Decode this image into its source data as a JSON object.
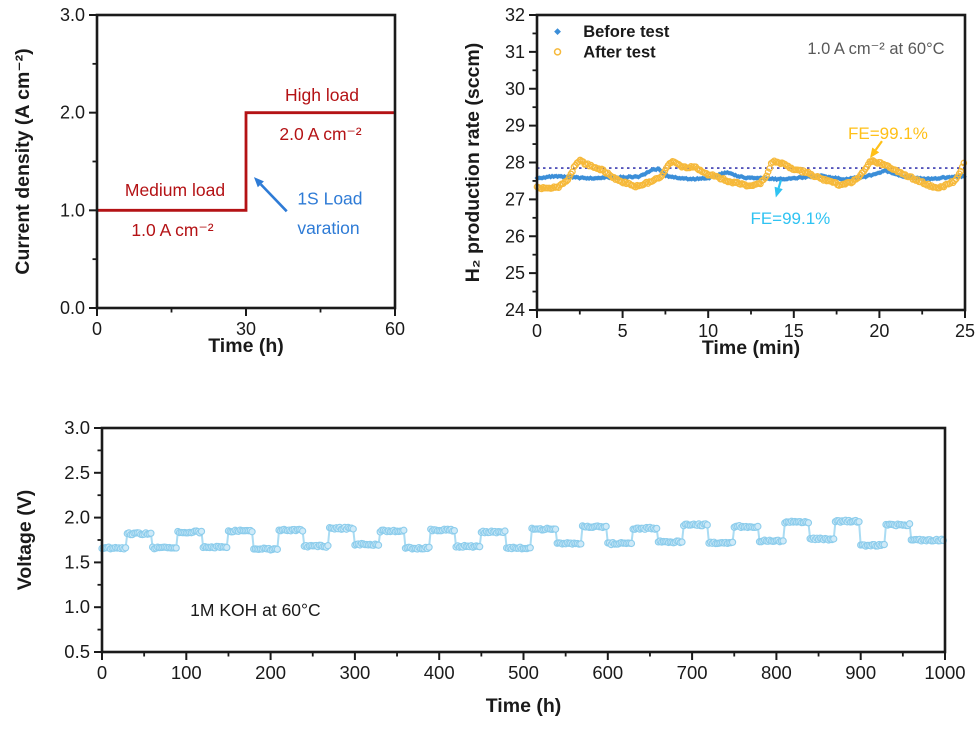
{
  "page": {
    "background": "#ffffff",
    "frame_color": "#1a1a1a"
  },
  "chart_data": [
    {
      "id": "load_profile",
      "type": "line",
      "title": "",
      "xlabel": "Time (h)",
      "ylabel": "Current density (A cm⁻²)",
      "xlim": [
        0,
        60
      ],
      "ylim": [
        0,
        3
      ],
      "xticks": [
        {
          "v": 0,
          "label": "0"
        },
        {
          "v": 30,
          "label": "30"
        },
        {
          "v": 60,
          "label": "60"
        }
      ],
      "xminor": [
        15,
        45
      ],
      "yticks": [
        {
          "v": 0,
          "label": "0.0"
        },
        {
          "v": 1,
          "label": "1.0"
        },
        {
          "v": 2,
          "label": "2.0"
        },
        {
          "v": 3,
          "label": "3.0"
        }
      ],
      "yminor": [
        0.5,
        1.5,
        2.5
      ],
      "grid": false,
      "series": [
        {
          "name": "current-density-step",
          "kind": "line",
          "color": "#b41215",
          "width": 2.8,
          "points": [
            [
              0,
              1
            ],
            [
              30,
              1
            ],
            [
              30,
              2
            ],
            [
              60,
              2
            ]
          ]
        }
      ],
      "annotations": [
        {
          "text": "Medium load",
          "x": 15.7,
          "y": 1.21,
          "color": "#b41215",
          "size": 17.5,
          "weight": "normal"
        },
        {
          "text": "1.0 A cm⁻²",
          "x": 15.2,
          "y": 0.8,
          "color": "#b41215",
          "size": 17.5,
          "weight": "normal"
        },
        {
          "text": "High load",
          "x": 45.3,
          "y": 2.18,
          "color": "#b41215",
          "size": 17.5,
          "weight": "normal"
        },
        {
          "text": "2.0 A cm⁻²",
          "x": 45.0,
          "y": 1.78,
          "color": "#b41215",
          "size": 17.5,
          "weight": "normal"
        },
        {
          "text": "1S Load",
          "x": 46.9,
          "y": 1.12,
          "color": "#2e7bd6",
          "size": 17.5,
          "weight": "normal"
        },
        {
          "text": "varation",
          "x": 46.6,
          "y": 0.82,
          "color": "#2e7bd6",
          "size": 17.5,
          "weight": "normal"
        }
      ],
      "arrows": [
        {
          "from": [
            38.2,
            0.99
          ],
          "to": [
            31.6,
            1.34
          ],
          "color": "#2e7bd6",
          "width": 2.6
        }
      ]
    },
    {
      "id": "h2_rate",
      "type": "scatter",
      "title": "",
      "xlabel": "Time (min)",
      "ylabel": "H₂ production rate (sccm)",
      "xlim": [
        0,
        25
      ],
      "ylim": [
        24,
        32
      ],
      "xticks": [
        {
          "v": 0,
          "label": "0"
        },
        {
          "v": 5,
          "label": "5"
        },
        {
          "v": 10,
          "label": "10"
        },
        {
          "v": 15,
          "label": "15"
        },
        {
          "v": 20,
          "label": "20"
        },
        {
          "v": 25,
          "label": "25"
        }
      ],
      "xminor": [
        2.5,
        7.5,
        12.5,
        17.5,
        22.5
      ],
      "yticks": [
        {
          "v": 24,
          "label": "24"
        },
        {
          "v": 25,
          "label": "25"
        },
        {
          "v": 26,
          "label": "26"
        },
        {
          "v": 27,
          "label": "27"
        },
        {
          "v": 28,
          "label": "28"
        },
        {
          "v": 29,
          "label": "29"
        },
        {
          "v": 30,
          "label": "30"
        },
        {
          "v": 31,
          "label": "31"
        },
        {
          "v": 32,
          "label": "32"
        }
      ],
      "yminor": [
        24.5,
        25.5,
        26.5,
        27.5,
        28.5,
        29.5,
        30.5,
        31.5
      ],
      "grid": false,
      "reflines": [
        {
          "y": 27.85,
          "color": "#3b3bb0",
          "width": 1.6,
          "dash": "2.5 3.5"
        }
      ],
      "series": [
        {
          "name": "Before test",
          "kind": "scatter",
          "marker": "diamond",
          "color": "#3b8ed8",
          "size": 2.5,
          "densify_step": 0.08,
          "jitter": 0.018,
          "seed": 3.1,
          "waypoints": [
            [
              0,
              27.58
            ],
            [
              1,
              27.62
            ],
            [
              2,
              27.6
            ],
            [
              3,
              27.57
            ],
            [
              4,
              27.6
            ],
            [
              5,
              27.6
            ],
            [
              6,
              27.62
            ],
            [
              6.8,
              27.8
            ],
            [
              7.1,
              27.83
            ],
            [
              7.5,
              27.65
            ],
            [
              8,
              27.6
            ],
            [
              8.5,
              27.57
            ],
            [
              9,
              27.55
            ],
            [
              10,
              27.58
            ],
            [
              10.8,
              27.7
            ],
            [
              11.2,
              27.73
            ],
            [
              11.6,
              27.65
            ],
            [
              12,
              27.6
            ],
            [
              13,
              27.57
            ],
            [
              14,
              27.55
            ],
            [
              15,
              27.57
            ],
            [
              16,
              27.62
            ],
            [
              16.5,
              27.65
            ],
            [
              17,
              27.6
            ],
            [
              18,
              27.55
            ],
            [
              19,
              27.6
            ],
            [
              19.8,
              27.68
            ],
            [
              20.3,
              27.78
            ],
            [
              20.8,
              27.7
            ],
            [
              21.5,
              27.62
            ],
            [
              22,
              27.58
            ],
            [
              23,
              27.55
            ],
            [
              24,
              27.6
            ],
            [
              25,
              27.63
            ]
          ]
        },
        {
          "name": "After test",
          "kind": "scatter",
          "marker": "circle-open",
          "color": "#f6b93b",
          "size": 2.7,
          "stroke_width": 1.3,
          "densify_step": 0.09,
          "jitter": 0.03,
          "seed": 7.7,
          "waypoints": [
            [
              0,
              27.32
            ],
            [
              0.7,
              27.28
            ],
            [
              1.3,
              27.35
            ],
            [
              1.8,
              27.5
            ],
            [
              2.2,
              27.9
            ],
            [
              2.5,
              28.05
            ],
            [
              2.9,
              27.95
            ],
            [
              3.3,
              27.88
            ],
            [
              3.8,
              27.8
            ],
            [
              4.3,
              27.65
            ],
            [
              4.8,
              27.5
            ],
            [
              5.3,
              27.42
            ],
            [
              5.8,
              27.35
            ],
            [
              6.3,
              27.42
            ],
            [
              6.8,
              27.52
            ],
            [
              7.3,
              27.65
            ],
            [
              7.7,
              27.95
            ],
            [
              8.0,
              28.03
            ],
            [
              8.4,
              27.9
            ],
            [
              8.8,
              27.85
            ],
            [
              9.2,
              27.88
            ],
            [
              9.6,
              27.75
            ],
            [
              10.0,
              27.68
            ],
            [
              10.5,
              27.62
            ],
            [
              11.0,
              27.52
            ],
            [
              11.5,
              27.46
            ],
            [
              12.0,
              27.4
            ],
            [
              12.5,
              27.35
            ],
            [
              13.0,
              27.42
            ],
            [
              13.4,
              27.6
            ],
            [
              13.7,
              28.0
            ],
            [
              14.0,
              28.04
            ],
            [
              14.4,
              27.95
            ],
            [
              14.8,
              27.85
            ],
            [
              15.2,
              27.8
            ],
            [
              15.8,
              27.72
            ],
            [
              16.3,
              27.62
            ],
            [
              16.8,
              27.52
            ],
            [
              17.3,
              27.45
            ],
            [
              17.8,
              27.38
            ],
            [
              18.3,
              27.45
            ],
            [
              18.8,
              27.58
            ],
            [
              19.2,
              27.85
            ],
            [
              19.5,
              28.05
            ],
            [
              19.9,
              28.0
            ],
            [
              20.4,
              27.92
            ],
            [
              20.9,
              27.8
            ],
            [
              21.4,
              27.68
            ],
            [
              21.9,
              27.58
            ],
            [
              22.4,
              27.48
            ],
            [
              22.9,
              27.38
            ],
            [
              23.4,
              27.3
            ],
            [
              23.9,
              27.38
            ],
            [
              24.4,
              27.5
            ],
            [
              24.8,
              27.8
            ],
            [
              25,
              28.08
            ]
          ]
        }
      ],
      "legend": {
        "marker_x": 1.2,
        "text_x": 2.7,
        "rows_y": [
          31.55,
          31.0
        ],
        "text_color": "#1a1a1a",
        "size": 16.5,
        "weight": "bold",
        "items": [
          {
            "marker": "diamond",
            "color": "#3b8ed8",
            "label": "Before test"
          },
          {
            "marker": "circle-open",
            "color": "#f6b93b",
            "label": "After test"
          }
        ]
      },
      "annotations": [
        {
          "text": "1.0 A cm⁻² at 60°C",
          "x": 19.8,
          "y": 31.1,
          "color": "#595959",
          "size": 16.5,
          "weight": "normal"
        },
        {
          "text": "FE=99.1%",
          "x": 20.5,
          "y": 28.8,
          "color": "#ffc017",
          "size": 17,
          "weight": "normal"
        },
        {
          "text": "FE=99.1%",
          "x": 14.8,
          "y": 26.5,
          "color": "#2fc3f2",
          "size": 17,
          "weight": "normal"
        }
      ],
      "arrows": [
        {
          "from": [
            20.15,
            28.58
          ],
          "to": [
            19.45,
            28.12
          ],
          "color": "#ffc017",
          "width": 2.2
        },
        {
          "from": [
            14.25,
            27.52
          ],
          "to": [
            13.95,
            27.05
          ],
          "color": "#2fc3f2",
          "width": 2.2
        }
      ]
    },
    {
      "id": "durability",
      "type": "scatter",
      "title": "",
      "xlabel": "Time (h)",
      "ylabel": "Voltage (V)",
      "xlim": [
        0,
        1000
      ],
      "ylim": [
        0.5,
        3.0
      ],
      "xticks": [
        {
          "v": 0,
          "label": "0"
        },
        {
          "v": 100,
          "label": "100"
        },
        {
          "v": 200,
          "label": "200"
        },
        {
          "v": 300,
          "label": "300"
        },
        {
          "v": 400,
          "label": "400"
        },
        {
          "v": 500,
          "label": "500"
        },
        {
          "v": 600,
          "label": "600"
        },
        {
          "v": 700,
          "label": "700"
        },
        {
          "v": 800,
          "label": "800"
        },
        {
          "v": 900,
          "label": "900"
        },
        {
          "v": 1000,
          "label": "1000"
        }
      ],
      "xminor": [
        50,
        150,
        250,
        350,
        450,
        550,
        650,
        750,
        850,
        950
      ],
      "yticks": [
        {
          "v": 0.5,
          "label": "0.5"
        },
        {
          "v": 1.0,
          "label": "1.0"
        },
        {
          "v": 1.5,
          "label": "1.5"
        },
        {
          "v": 2.0,
          "label": "2.0"
        },
        {
          "v": 2.5,
          "label": "2.5"
        },
        {
          "v": 3.0,
          "label": "3.0"
        }
      ],
      "yminor": [
        0.75,
        1.25,
        1.75,
        2.25,
        2.75
      ],
      "grid": false,
      "series": [
        {
          "name": "cell-voltage",
          "kind": "squarewave",
          "stroke": "#8dcdec",
          "fill": "#cfeaf8",
          "line_color": "#aadcf3",
          "size": 3.1,
          "marker_every": 2,
          "jitter": 0.011,
          "seed": 5.2,
          "segments": [
            [
              0,
              30,
              1.66
            ],
            [
              30,
              60,
              1.82
            ],
            [
              60,
              90,
              1.66
            ],
            [
              90,
              120,
              1.84
            ],
            [
              120,
              150,
              1.67
            ],
            [
              150,
              180,
              1.85
            ],
            [
              180,
              210,
              1.65
            ],
            [
              210,
              240,
              1.86
            ],
            [
              240,
              270,
              1.68
            ],
            [
              270,
              300,
              1.88
            ],
            [
              300,
              330,
              1.7
            ],
            [
              330,
              360,
              1.85
            ],
            [
              360,
              390,
              1.66
            ],
            [
              390,
              420,
              1.86
            ],
            [
              420,
              450,
              1.68
            ],
            [
              450,
              480,
              1.84
            ],
            [
              480,
              510,
              1.66
            ],
            [
              510,
              540,
              1.87
            ],
            [
              540,
              570,
              1.71
            ],
            [
              570,
              600,
              1.9
            ],
            [
              600,
              630,
              1.71
            ],
            [
              630,
              660,
              1.88
            ],
            [
              660,
              690,
              1.73
            ],
            [
              690,
              720,
              1.92
            ],
            [
              720,
              750,
              1.72
            ],
            [
              750,
              780,
              1.9
            ],
            [
              780,
              810,
              1.74
            ],
            [
              810,
              840,
              1.95
            ],
            [
              840,
              870,
              1.76
            ],
            [
              870,
              900,
              1.96
            ],
            [
              900,
              930,
              1.69
            ],
            [
              930,
              960,
              1.92
            ],
            [
              960,
              1000,
              1.75
            ]
          ]
        }
      ],
      "annotations": [
        {
          "text": "1M KOH at 60°C",
          "x": 182,
          "y": 0.97,
          "color": "#1a1a1a",
          "size": 17.5,
          "weight": "normal"
        }
      ],
      "arrows": []
    }
  ]
}
